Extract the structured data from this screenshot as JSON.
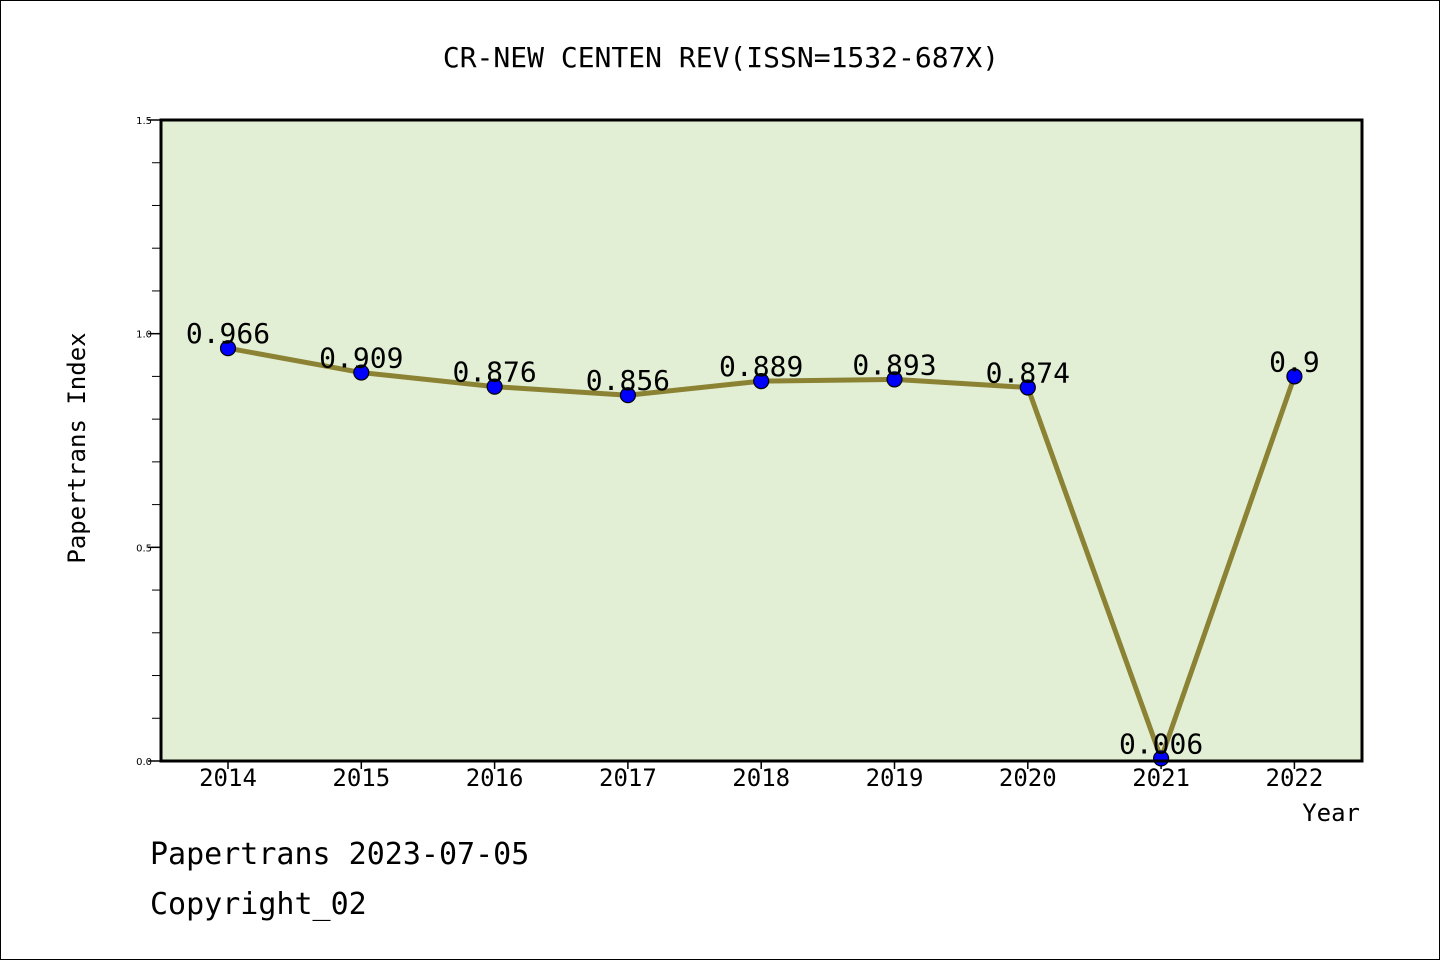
{
  "colors": {
    "plot_background": "#e2efd5",
    "line": "#8b8234",
    "marker": "#0000ff",
    "axis": "#000000"
  },
  "chart_data": {
    "type": "line",
    "title": "CR-NEW CENTEN REV(ISSN=1532-687X)",
    "xlabel": "Year",
    "ylabel": "Papertrans Index",
    "categories": [
      "2014",
      "2015",
      "2016",
      "2017",
      "2018",
      "2019",
      "2020",
      "2021",
      "2022"
    ],
    "series": [
      {
        "name": "Papertrans Index",
        "values": [
          0.966,
          0.909,
          0.876,
          0.856,
          0.889,
          0.893,
          0.874,
          0.006,
          0.9
        ],
        "data_labels": [
          "0.966",
          "0.909",
          "0.876",
          "0.856",
          "0.889",
          "0.893",
          "0.874",
          "0.006",
          "0.9"
        ]
      }
    ],
    "ylim": [
      0,
      1.5
    ],
    "y_major_ticks": [
      "0.0",
      "0.5",
      "1.0",
      "1.5"
    ],
    "y_minor_step": 0.1,
    "grid": false,
    "legend": "none"
  },
  "footer": {
    "line1": "Papertrans 2023-07-05",
    "line2": "Copyright_02"
  }
}
